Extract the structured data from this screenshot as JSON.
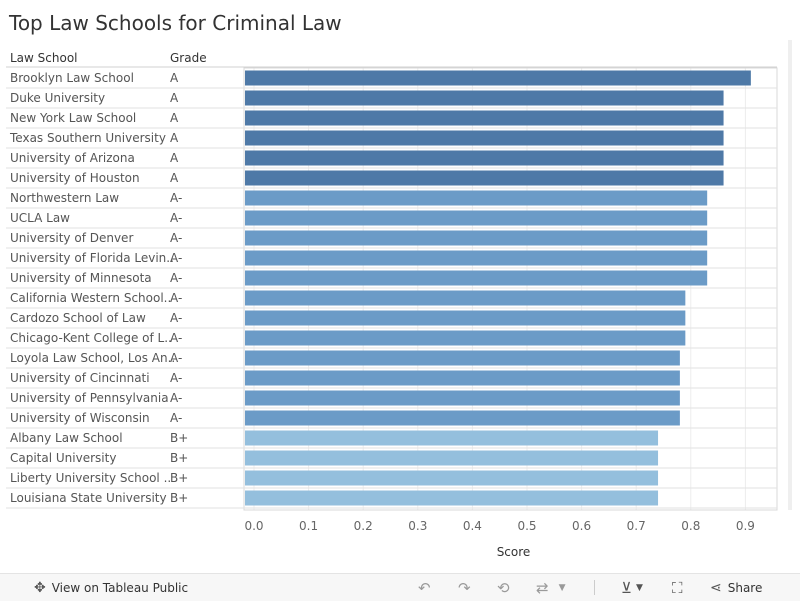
{
  "header": {
    "title": "Top Law Schools for Criminal Law",
    "col_school": "Law School",
    "col_grade": "Grade"
  },
  "footer": {
    "view_label": "View on Tableau Public",
    "share_label": "Share",
    "icons": [
      "tableau-logo-icon",
      "undo-icon",
      "redo-icon",
      "revert-icon",
      "refresh-icon",
      "pause-icon",
      "download-icon",
      "fullscreen-icon",
      "share-icon"
    ]
  },
  "colors": {
    "grade_A": "#4e79a7",
    "grade_A_minus": "#6b9bc7",
    "grade_B_plus": "#94bfdd"
  },
  "chart_data": {
    "type": "bar",
    "orientation": "horizontal",
    "title": "Top Law Schools for Criminal Law",
    "xlabel": "Score",
    "xlim": [
      0,
      0.9
    ],
    "xticks": [
      "0.0",
      "0.1",
      "0.2",
      "0.3",
      "0.4",
      "0.5",
      "0.6",
      "0.7",
      "0.8",
      "0.9"
    ],
    "grid": true,
    "rows": [
      {
        "school": "Brooklyn Law School",
        "grade": "A",
        "score": 0.91
      },
      {
        "school": "Duke University",
        "grade": "A",
        "score": 0.86
      },
      {
        "school": "New York Law School",
        "grade": "A",
        "score": 0.86
      },
      {
        "school": "Texas Southern University",
        "grade": "A",
        "score": 0.86
      },
      {
        "school": "University of Arizona",
        "grade": "A",
        "score": 0.86
      },
      {
        "school": "University of Houston",
        "grade": "A",
        "score": 0.86
      },
      {
        "school": "Northwestern Law",
        "grade": "A-",
        "score": 0.83
      },
      {
        "school": "UCLA Law",
        "grade": "A-",
        "score": 0.83
      },
      {
        "school": "University of Denver",
        "grade": "A-",
        "score": 0.83
      },
      {
        "school": "University of Florida Levin..",
        "grade": "A-",
        "score": 0.83
      },
      {
        "school": "University of Minnesota",
        "grade": "A-",
        "score": 0.83
      },
      {
        "school": "California Western School..",
        "grade": "A-",
        "score": 0.79
      },
      {
        "school": "Cardozo School of Law",
        "grade": "A-",
        "score": 0.79
      },
      {
        "school": "Chicago-Kent College of L..",
        "grade": "A-",
        "score": 0.79
      },
      {
        "school": "Loyola Law School, Los An..",
        "grade": "A-",
        "score": 0.78
      },
      {
        "school": "University of Cincinnati",
        "grade": "A-",
        "score": 0.78
      },
      {
        "school": "University of Pennsylvania",
        "grade": "A-",
        "score": 0.78
      },
      {
        "school": "University of Wisconsin",
        "grade": "A-",
        "score": 0.78
      },
      {
        "school": "Albany Law School",
        "grade": "B+",
        "score": 0.74
      },
      {
        "school": "Capital University",
        "grade": "B+",
        "score": 0.74
      },
      {
        "school": "Liberty University School ..",
        "grade": "B+",
        "score": 0.74
      },
      {
        "school": "Louisiana State University",
        "grade": "B+",
        "score": 0.74
      }
    ]
  }
}
